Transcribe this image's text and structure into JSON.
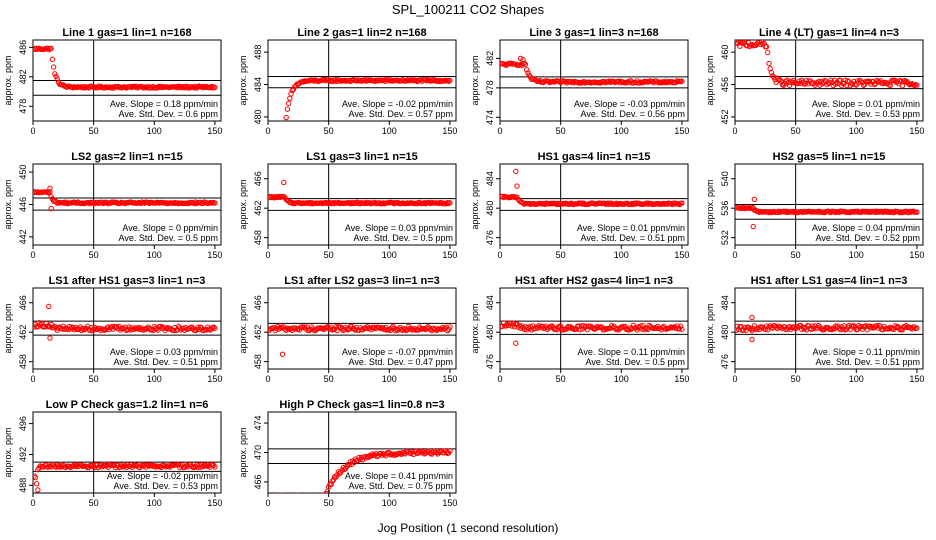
{
  "chart_data": {
    "type": "scatter",
    "title": "SPL_100211  CO2 Shapes",
    "xlabel": "Jog Position (1 second resolution)",
    "ylabel": "approx. ppm",
    "xlim": [
      0,
      155
    ],
    "xticks": [
      0,
      50,
      100,
      150
    ],
    "marker_color": "#ff0000",
    "panels": [
      {
        "title": "Line 1 gas=1 lin=1 n=168",
        "ylim": [
          476,
          487
        ],
        "yticks": [
          478,
          482,
          486
        ],
        "hlines": [
          481.5,
          479.5
        ],
        "annotations": [
          "Ave. Slope = 0.18 ppm/min",
          "Ave. Std. Dev. = 0.6 ppm"
        ],
        "series": {
          "onset": 15,
          "start": 485.8,
          "end": 480.6,
          "tau": 3,
          "noise": 0.12,
          "spikes": []
        }
      },
      {
        "title": "Line 2 gas=1 lin=2 n=168",
        "ylim": [
          479.5,
          489.5
        ],
        "yticks": [
          480,
          484,
          488
        ],
        "hlines": [
          485.0,
          483.6
        ],
        "annotations": [
          "Ave. Slope = -0.02 ppm/min",
          "Ave. Std. Dev. = 0.57 ppm"
        ],
        "series": {
          "onset": 14,
          "start": 478.5,
          "end": 484.5,
          "tau": 4,
          "noise": 0.12,
          "spikes": []
        }
      },
      {
        "title": "Line 3 gas=1 lin=3 n=168",
        "ylim": [
          473.5,
          484.5
        ],
        "yticks": [
          474,
          478,
          482
        ],
        "hlines": [
          479.5,
          478.0
        ],
        "annotations": [
          "Ave. Slope = -0.03 ppm/min",
          "Ave. Std. Dev. = 0.56 ppm"
        ],
        "series": {
          "onset": 21,
          "start": 481.2,
          "end": 478.8,
          "tau": 3,
          "noise": 0.15,
          "spikes": [
            [
              17,
              482.0
            ],
            [
              19,
              481.8
            ]
          ]
        }
      },
      {
        "title": "Line 4 (LT) gas=1 lin=4 n=3",
        "ylim": [
          451.5,
          461.5
        ],
        "yticks": [
          452,
          456,
          460
        ],
        "hlines": [
          457.0,
          455.5
        ],
        "annotations": [
          "Ave. Slope = 0.01 ppm/min",
          "Ave. Std. Dev. = 0.53 ppm"
        ],
        "series": {
          "onset": 26,
          "start": 461.0,
          "end": 456.2,
          "tau": 3,
          "noise": 0.35,
          "spikes": []
        }
      },
      {
        "title": "LS2 gas=2 lin=1 n=15",
        "ylim": [
          441,
          451
        ],
        "yticks": [
          442,
          446,
          450
        ],
        "hlines": [
          446.8,
          445.3
        ],
        "annotations": [
          "Ave. Slope = 0 ppm/min",
          "Ave. Std. Dev. = 0.5 ppm"
        ],
        "series": {
          "onset": 14,
          "start": 447.5,
          "end": 446.2,
          "tau": 2,
          "noise": 0.1,
          "spikes": [
            [
              14,
              448.0
            ],
            [
              15,
              445.5
            ]
          ]
        }
      },
      {
        "title": "LS1 gas=3 lin=1 n=15",
        "ylim": [
          457,
          468
        ],
        "yticks": [
          458,
          462,
          466
        ],
        "hlines": [
          463.3,
          461.7
        ],
        "annotations": [
          "Ave. Slope = 0.03 ppm/min",
          "Ave. Std. Dev. = 0.5 ppm"
        ],
        "series": {
          "onset": 14,
          "start": 463.5,
          "end": 462.7,
          "tau": 2,
          "noise": 0.1,
          "spikes": [
            [
              13,
              465.5
            ]
          ]
        }
      },
      {
        "title": "HS1 gas=4 lin=1 n=15",
        "ylim": [
          475,
          486
        ],
        "yticks": [
          476,
          480,
          484
        ],
        "hlines": [
          481.3,
          479.7
        ],
        "annotations": [
          "Ave. Slope = 0.01 ppm/min",
          "Ave. Std. Dev. = 0.51 ppm"
        ],
        "series": {
          "onset": 14,
          "start": 481.5,
          "end": 480.6,
          "tau": 2,
          "noise": 0.1,
          "spikes": [
            [
              13,
              485.0
            ],
            [
              14,
              483.0
            ]
          ]
        }
      },
      {
        "title": "HS2 gas=5 lin=1 n=15",
        "ylim": [
          531,
          542
        ],
        "yticks": [
          532,
          536,
          540
        ],
        "hlines": [
          536.5,
          534.5
        ],
        "annotations": [
          "Ave. Slope = 0.04 ppm/min",
          "Ave. Std. Dev. = 0.52 ppm"
        ],
        "series": {
          "onset": 15,
          "start": 536.0,
          "end": 535.5,
          "tau": 2,
          "noise": 0.1,
          "spikes": [
            [
              16,
              537.2
            ],
            [
              15,
              533.5
            ]
          ]
        }
      },
      {
        "title": "LS1 after HS1 gas=3 lin=1 n=3",
        "ylim": [
          457,
          468
        ],
        "yticks": [
          458,
          462,
          466
        ],
        "hlines": [
          463.5,
          461.6
        ],
        "annotations": [
          "Ave. Slope = 0.03 ppm/min",
          "Ave. Std. Dev. = 0.51 ppm"
        ],
        "series": {
          "onset": 14,
          "start": 463.0,
          "end": 462.5,
          "tau": 2,
          "noise": 0.3,
          "spikes": [
            [
              13,
              465.5
            ],
            [
              14,
              461.2
            ]
          ]
        }
      },
      {
        "title": "LS1 after LS2 gas=3 lin=1 n=3",
        "ylim": [
          457,
          468
        ],
        "yticks": [
          458,
          462,
          466
        ],
        "hlines": [
          463.2,
          461.6
        ],
        "annotations": [
          "Ave. Slope = -0.07 ppm/min",
          "Ave. Std. Dev. = 0.47 ppm"
        ],
        "series": {
          "onset": 14,
          "start": 462.5,
          "end": 462.5,
          "tau": 2,
          "noise": 0.3,
          "spikes": [
            [
              12,
              459.0
            ]
          ]
        }
      },
      {
        "title": "HS1 after HS2 gas=4 lin=1 n=3",
        "ylim": [
          475,
          486
        ],
        "yticks": [
          476,
          480,
          484
        ],
        "hlines": [
          481.5,
          479.7
        ],
        "annotations": [
          "Ave. Slope = 0.11 ppm/min",
          "Ave. Std. Dev. = 0.5 ppm"
        ],
        "series": {
          "onset": 14,
          "start": 481.0,
          "end": 480.6,
          "tau": 2,
          "noise": 0.3,
          "spikes": [
            [
              13,
              478.5
            ]
          ]
        }
      },
      {
        "title": "HS1 after LS1 gas=4 lin=1 n=3",
        "ylim": [
          475,
          486
        ],
        "yticks": [
          476,
          480,
          484
        ],
        "hlines": [
          481.5,
          479.7
        ],
        "annotations": [
          "Ave. Slope = 0.11 ppm/min",
          "Ave. Std. Dev. = 0.51 ppm"
        ],
        "series": {
          "onset": 14,
          "start": 480.5,
          "end": 480.6,
          "tau": 2,
          "noise": 0.3,
          "spikes": [
            [
              14,
              482.0
            ],
            [
              14,
              479.0
            ]
          ]
        }
      },
      {
        "title": "Low P Check gas=1.2 lin=1 n=6",
        "ylim": [
          487,
          497.5
        ],
        "yticks": [
          488,
          492,
          496
        ],
        "hlines": [
          491.0,
          489.8
        ],
        "annotations": [
          "Ave. Slope = -0.02 ppm/min",
          "Ave. Std. Dev. = 0.53 ppm"
        ],
        "series": {
          "onset": 4,
          "start": 490.0,
          "end": 490.5,
          "tau": 2,
          "noise": 0.2,
          "spikes": [
            [
              2,
              489.0
            ],
            [
              3,
              488.2
            ],
            [
              4,
              487.4
            ],
            [
              1,
              489.2
            ]
          ]
        }
      },
      {
        "title": "High P Check gas=1 lin=0.8 n=3",
        "ylim": [
          464.5,
          475.5
        ],
        "yticks": [
          466,
          470,
          474
        ],
        "hlines": [
          470.5,
          468.5
        ],
        "annotations": [
          "Ave. Slope = 0.41 ppm/min",
          "Ave. Std. Dev. = 0.75 ppm"
        ],
        "series": {
          "onset": 47,
          "start": 464.0,
          "end": 470.0,
          "tau": 15,
          "noise": 0.25,
          "spikes": []
        }
      }
    ]
  }
}
